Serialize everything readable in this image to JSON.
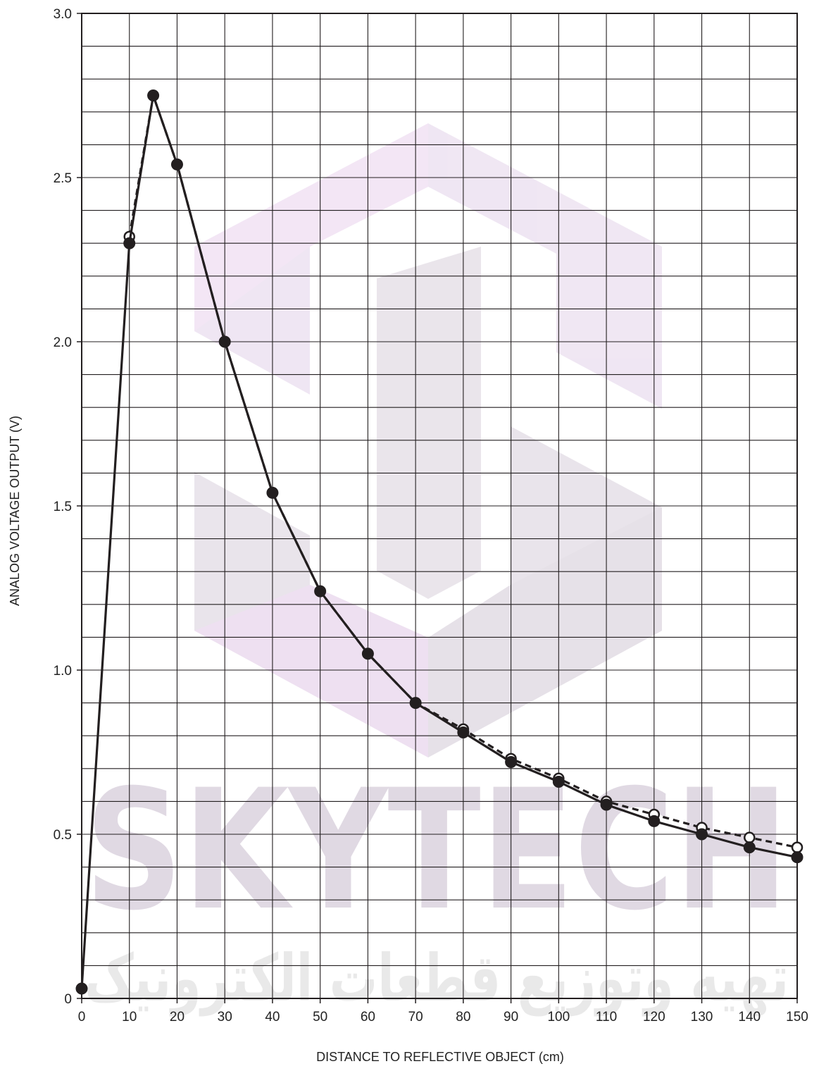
{
  "watermark": {
    "text": "SKYTECH",
    "subtext": "تهیه وتوزیع قطعات الکترونیک",
    "color": "#cdbcd4"
  },
  "chart_data": {
    "type": "line",
    "title": "",
    "xlabel": "DISTANCE TO REFLECTIVE OBJECT (cm)",
    "ylabel": "ANALOG VOLTAGE OUTPUT (V)",
    "xlim": [
      0,
      150
    ],
    "ylim": [
      0,
      3.0
    ],
    "x_ticks": [
      0,
      10,
      20,
      30,
      40,
      50,
      60,
      70,
      80,
      90,
      100,
      110,
      120,
      130,
      140,
      150
    ],
    "x_tick_labels": [
      "0",
      "10",
      "20",
      "30",
      "40",
      "50",
      "60",
      "70",
      "80",
      "90",
      "100",
      "110",
      "120",
      "130",
      "140",
      "150"
    ],
    "y_ticks": [
      0,
      0.5,
      1.0,
      1.5,
      2.0,
      2.5,
      3.0
    ],
    "y_tick_labels": [
      "0",
      "0.5",
      "1.0",
      "1.5",
      "2.0",
      "2.5",
      "3.0"
    ],
    "grid": true,
    "series": [
      {
        "style": "solid",
        "marker": "filled-circle",
        "color": "#231f20",
        "x": [
          0,
          10,
          15,
          20,
          30,
          40,
          50,
          60,
          70,
          80,
          90,
          100,
          110,
          120,
          130,
          140,
          150
        ],
        "y": [
          0.03,
          2.3,
          2.75,
          2.54,
          2.0,
          1.54,
          1.24,
          1.05,
          0.9,
          0.81,
          0.72,
          0.66,
          0.59,
          0.54,
          0.5,
          0.46,
          0.43
        ]
      },
      {
        "style": "dashed",
        "marker": "open-circle",
        "color": "#231f20",
        "x": [
          10,
          15,
          20,
          30,
          40,
          50,
          60,
          70,
          80,
          90,
          100,
          110,
          120,
          130,
          140,
          150
        ],
        "y": [
          2.32,
          2.75,
          2.54,
          2.0,
          1.54,
          1.24,
          1.05,
          0.9,
          0.82,
          0.73,
          0.67,
          0.6,
          0.56,
          0.52,
          0.49,
          0.46
        ]
      }
    ]
  }
}
